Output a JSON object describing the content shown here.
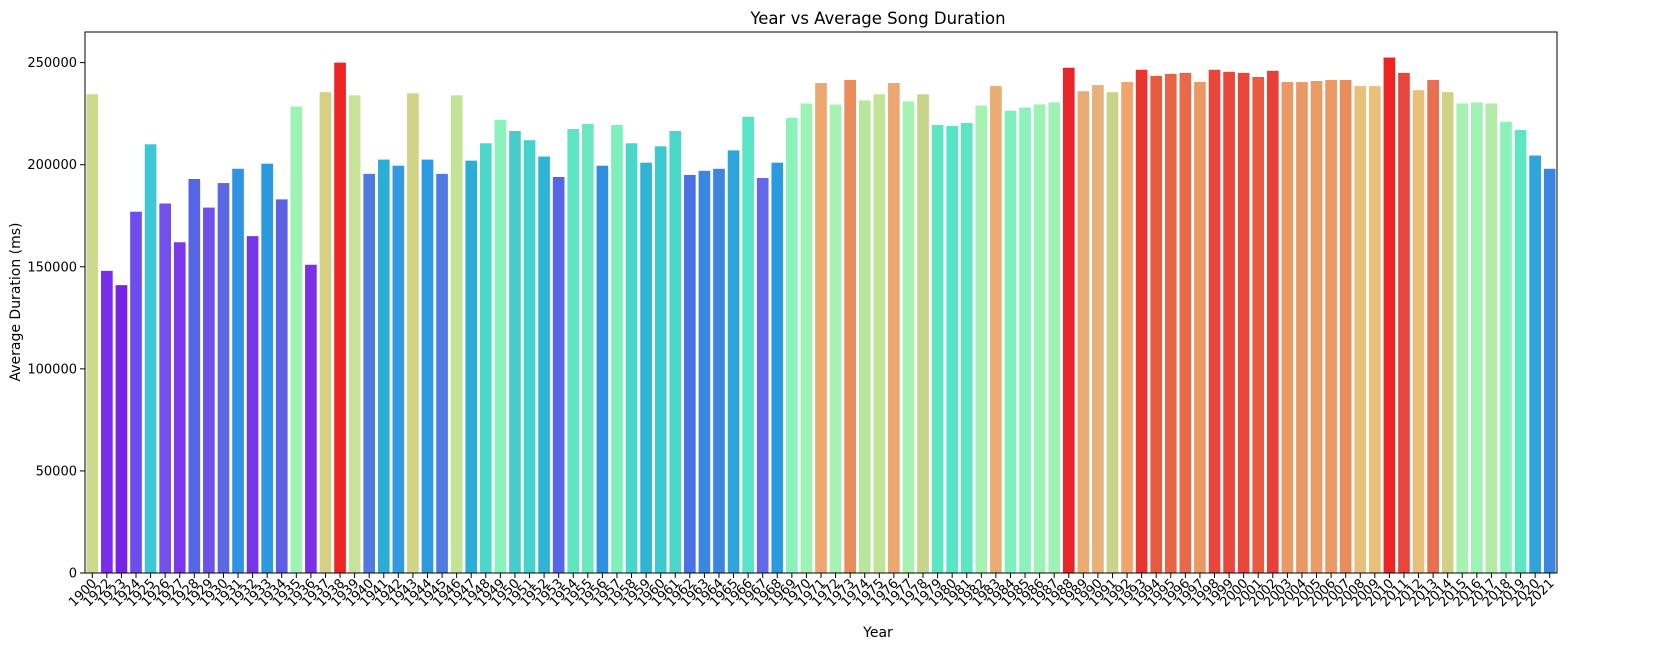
{
  "chart_data": {
    "type": "bar",
    "title": "Year vs Average Song Duration",
    "xlabel": "Year",
    "ylabel": "Average Duration (ms)",
    "ylim": [
      0,
      265000
    ],
    "yticks": [
      0,
      50000,
      100000,
      150000,
      200000,
      250000
    ],
    "grid": false,
    "categories": [
      "1900",
      "1922",
      "1923",
      "1924",
      "1925",
      "1926",
      "1927",
      "1928",
      "1929",
      "1930",
      "1931",
      "1932",
      "1933",
      "1934",
      "1935",
      "1936",
      "1937",
      "1938",
      "1939",
      "1940",
      "1941",
      "1942",
      "1943",
      "1944",
      "1945",
      "1946",
      "1947",
      "1948",
      "1949",
      "1950",
      "1951",
      "1952",
      "1953",
      "1954",
      "1955",
      "1956",
      "1957",
      "1958",
      "1959",
      "1960",
      "1961",
      "1962",
      "1963",
      "1964",
      "1965",
      "1966",
      "1967",
      "1968",
      "1969",
      "1970",
      "1971",
      "1972",
      "1973",
      "1974",
      "1975",
      "1976",
      "1977",
      "1978",
      "1979",
      "1980",
      "1981",
      "1982",
      "1983",
      "1984",
      "1985",
      "1986",
      "1987",
      "1988",
      "1989",
      "1990",
      "1991",
      "1992",
      "1993",
      "1994",
      "1995",
      "1996",
      "1997",
      "1998",
      "1999",
      "2000",
      "2001",
      "2002",
      "2003",
      "2004",
      "2005",
      "2006",
      "2007",
      "2008",
      "2009",
      "2010",
      "2011",
      "2012",
      "2013",
      "2014",
      "2015",
      "2016",
      "2017",
      "2018",
      "2019",
      "2020",
      "2021"
    ],
    "values": [
      234500,
      148000,
      141000,
      177000,
      210000,
      181000,
      162000,
      193000,
      179000,
      191000,
      198000,
      165000,
      200500,
      183000,
      228500,
      151000,
      235500,
      250000,
      234000,
      195500,
      202500,
      199500,
      235000,
      202500,
      195500,
      234000,
      202000,
      210500,
      222000,
      216500,
      212000,
      204000,
      194000,
      217500,
      220000,
      199500,
      219500,
      210500,
      201000,
      209000,
      216500,
      195000,
      197000,
      198000,
      207000,
      223500,
      193500,
      201000,
      223000,
      230000,
      240000,
      229500,
      241500,
      231500,
      234500,
      240000,
      231000,
      234500,
      219500,
      219000,
      220500,
      229000,
      238500,
      226500,
      228000,
      229500,
      230500,
      247500,
      236000,
      239000,
      235500,
      240500,
      246500,
      243500,
      244500,
      245000,
      240500,
      246500,
      245500,
      245000,
      243000,
      246000,
      240500,
      240500,
      241000,
      241500,
      241500,
      238500,
      238500,
      252500,
      245000,
      236500,
      241500,
      235500,
      230000,
      230500,
      230000,
      221000,
      217000,
      204500,
      198000
    ],
    "colors": [
      "#cdd98c",
      "#7b2bec",
      "#7822e6",
      "#6e4dec",
      "#3ec8d3",
      "#7350ec",
      "#7a38ea",
      "#5466e6",
      "#6d52e9",
      "#5a68e4",
      "#3092e2",
      "#7636e6",
      "#2a9ae0",
      "#5c5ee4",
      "#9ef2b4",
      "#7b30e8",
      "#d7cf83",
      "#ee2424",
      "#c7e39a",
      "#4f7ae0",
      "#2aaed8",
      "#349ae0",
      "#d1d386",
      "#2c9ae0",
      "#4f7ae0",
      "#c2e496",
      "#2aaed8",
      "#4ad6c8",
      "#8cf2bc",
      "#48ccca",
      "#44d2cc",
      "#30b4d6",
      "#5466e6",
      "#5ce6c4",
      "#6ce8c0",
      "#3090e0",
      "#7ef0bc",
      "#4ad6ca",
      "#30b4d6",
      "#3ccad0",
      "#4ad6c8",
      "#4a72e4",
      "#3a86e0",
      "#3a86e0",
      "#2ea4dc",
      "#58e4c6",
      "#6468e8",
      "#2c9ae0",
      "#8cf2bc",
      "#9ef2b4",
      "#eca870",
      "#a6f2b2",
      "#e88c5c",
      "#b8e69e",
      "#c2e496",
      "#eca870",
      "#a6f2b2",
      "#c7d489",
      "#5ce6c4",
      "#58e4c6",
      "#5ce6c4",
      "#a6f2b2",
      "#eaac72",
      "#7ef0bc",
      "#8cf2bc",
      "#9ef2b4",
      "#9ef2b4",
      "#e8262a",
      "#eaac72",
      "#e8b07a",
      "#c7d489",
      "#f0a46a",
      "#e8362e",
      "#e85a3e",
      "#e86444",
      "#e8684a",
      "#ec9864",
      "#e8463a",
      "#e8463a",
      "#e8463a",
      "#e85a42",
      "#e84038",
      "#ec9864",
      "#ec9864",
      "#ec9a66",
      "#ec9864",
      "#e88c5c",
      "#e8c07a",
      "#e8c07a",
      "#ec2422",
      "#e8463a",
      "#e8c07a",
      "#e87050",
      "#d0d086",
      "#a6f2b2",
      "#9ef2b4",
      "#b2eaa6",
      "#8cf2bc",
      "#5ce6c4",
      "#2ea4dc",
      "#3a86e0"
    ]
  }
}
